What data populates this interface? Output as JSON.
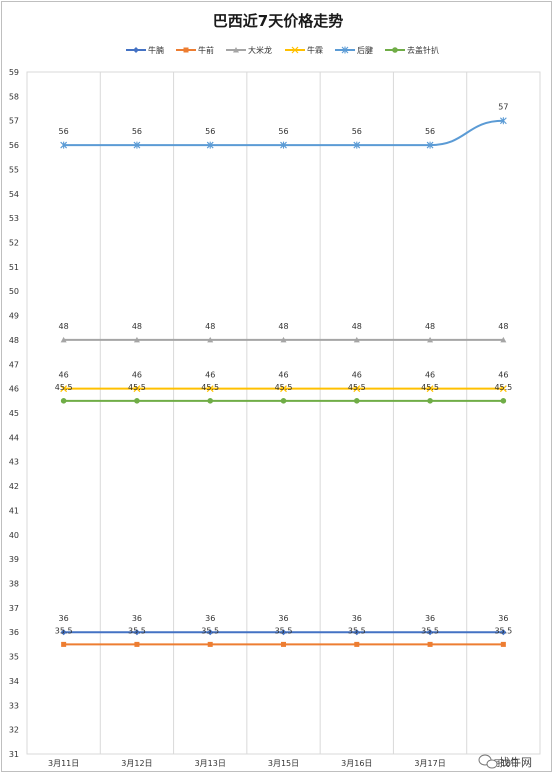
{
  "chart_data": {
    "type": "line",
    "title": "巴西近7天价格走势",
    "categories": [
      "3月11日",
      "3月12日",
      "3月13日",
      "3月15日",
      "3月16日",
      "3月17日",
      "3月18日"
    ],
    "ylim": [
      31,
      59
    ],
    "ytick_step": 1,
    "grid": "vertical",
    "legend_position": "top",
    "series": [
      {
        "name": "牛腩",
        "color": "#4472c4",
        "marker": "diamond",
        "values": [
          36,
          36,
          36,
          36,
          36,
          36,
          36
        ]
      },
      {
        "name": "牛前",
        "color": "#ed7d31",
        "marker": "square",
        "values": [
          35.5,
          35.5,
          35.5,
          35.5,
          35.5,
          35.5,
          35.5
        ]
      },
      {
        "name": "大米龙",
        "color": "#a5a5a5",
        "marker": "triangle",
        "values": [
          48,
          48,
          48,
          48,
          48,
          48,
          48
        ]
      },
      {
        "name": "牛霖",
        "color": "#ffc000",
        "marker": "x",
        "values": [
          46,
          46,
          46,
          46,
          46,
          46,
          46
        ]
      },
      {
        "name": "后腱",
        "color": "#5b9bd5",
        "marker": "star",
        "values": [
          56,
          56,
          56,
          56,
          56,
          56,
          57
        ]
      },
      {
        "name": "去盖针扒",
        "color": "#70ad47",
        "marker": "circle",
        "values": [
          45.5,
          45.5,
          45.5,
          45.5,
          45.5,
          45.5,
          45.5
        ]
      }
    ]
  },
  "watermark": "找牛网"
}
